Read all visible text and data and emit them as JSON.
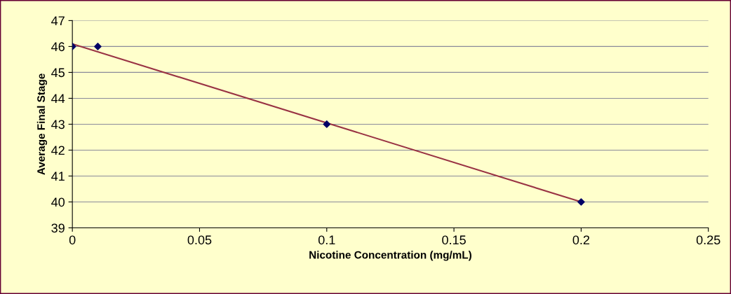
{
  "chart_data": {
    "type": "scatter",
    "xlabel": "Nicotine Concentration (mg/mL)",
    "ylabel": "Average Final Stage",
    "series": [
      {
        "color": "#000066",
        "marker": "diamond",
        "x": [
          0,
          0.01,
          0.1,
          0.2
        ],
        "values": [
          46,
          46,
          43,
          40
        ]
      },
      {
        "type": "line",
        "color": "#993344",
        "x": [
          0,
          0.2
        ],
        "values": [
          46.1,
          40
        ]
      }
    ],
    "xlim": [
      0,
      0.25
    ],
    "xticks": [
      0,
      0.05,
      0.1,
      0.15,
      0.2,
      0.25
    ],
    "ylim": [
      39,
      47
    ],
    "yticks": [
      39,
      40,
      41,
      42,
      43,
      44,
      45,
      46,
      47
    ],
    "grid": "y"
  }
}
